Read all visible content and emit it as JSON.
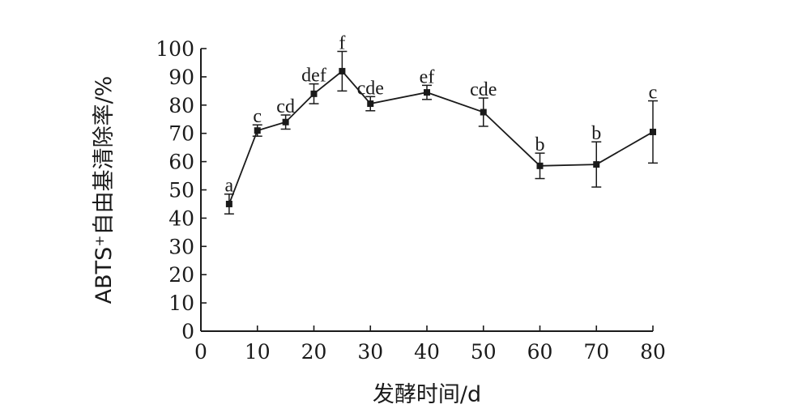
{
  "chart_data": {
    "type": "line",
    "xlabel": "发酵时间/d",
    "ylabel": "ABTS⁺自由基清除率/%",
    "xlim": [
      0,
      80
    ],
    "ylim": [
      0,
      100
    ],
    "x_ticks": [
      "0",
      "10",
      "20",
      "30",
      "40",
      "50",
      "60",
      "70",
      "80"
    ],
    "y_ticks": [
      "0",
      "10",
      "20",
      "30",
      "40",
      "50",
      "60",
      "70",
      "80",
      "90",
      "100"
    ],
    "grid": false,
    "series": [
      {
        "x": [
          5,
          10,
          15,
          20,
          25,
          30,
          40,
          50,
          60,
          70,
          80
        ],
        "y": [
          45,
          71,
          74,
          84,
          92,
          80.5,
          84.5,
          77.5,
          58.5,
          59,
          70.5
        ],
        "error": [
          3.5,
          2,
          2.5,
          3.5,
          7,
          2.5,
          2.5,
          5,
          4.5,
          8,
          11
        ],
        "labels": [
          "a",
          "c",
          "cd",
          "def",
          "f",
          "cde",
          "ef",
          "cde",
          "b",
          "b",
          "c"
        ]
      }
    ]
  }
}
